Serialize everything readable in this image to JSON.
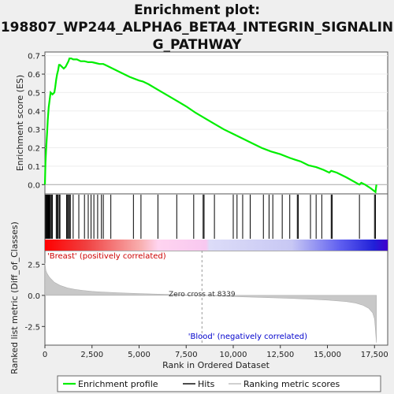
{
  "title_line1": "Enrichment plot:",
  "title_line2": "198807_WP244_ALPHA6_BETA4_INTEGRIN_SIGNALIN",
  "title_line3": "G_PATHWAY",
  "chart_data": {
    "type": "line",
    "n_genes": 17600,
    "es_axis": {
      "label": "Enrichment score (ES)",
      "ylim": [
        -0.05,
        0.72
      ],
      "ticks": [
        0.0,
        0.1,
        0.2,
        0.3,
        0.4,
        0.5,
        0.6,
        0.7
      ],
      "tick_labels": [
        "0.0",
        "0.1",
        "0.2",
        "0.3",
        "0.4",
        "0.5",
        "0.6",
        "0.7"
      ]
    },
    "metric_axis": {
      "label": "Ranked list metric (Diff_of_Classes)",
      "ylim": [
        -4.0,
        3.6
      ],
      "ticks": [
        2.5,
        0.0,
        -2.5
      ],
      "tick_labels": [
        "2.5",
        "0.0",
        "-2.5"
      ]
    },
    "x_axis": {
      "label": "Rank in Ordered Dataset",
      "xlim": [
        0,
        18200
      ],
      "ticks": [
        0,
        2500,
        5000,
        7500,
        10000,
        12500,
        15000,
        17500
      ],
      "tick_labels": [
        "0",
        "2,500",
        "5,000",
        "7,500",
        "10,000",
        "12,500",
        "15,000",
        "17,500"
      ]
    },
    "series": [
      {
        "name": "Enrichment profile",
        "color": "#00ee00",
        "x": [
          0,
          30,
          60,
          90,
          120,
          150,
          200,
          250,
          300,
          400,
          500,
          550,
          600,
          650,
          700,
          750,
          800,
          900,
          1000,
          1100,
          1200,
          1250,
          1300,
          1400,
          1500,
          1700,
          1900,
          2100,
          2300,
          2500,
          2700,
          2900,
          3100,
          3300,
          3500,
          4000,
          4500,
          5000,
          5200,
          5500,
          6000,
          6500,
          7000,
          7500,
          8000,
          8500,
          9000,
          9500,
          10000,
          10500,
          11000,
          11500,
          12000,
          12500,
          13000,
          13300,
          13600,
          14000,
          14400,
          14800,
          15100,
          15200,
          15500,
          16000,
          16700,
          16800,
          17000,
          17300,
          17550,
          17600
        ],
        "y": [
          0.0,
          0.12,
          0.18,
          0.24,
          0.29,
          0.35,
          0.42,
          0.46,
          0.5,
          0.49,
          0.5,
          0.53,
          0.57,
          0.6,
          0.62,
          0.65,
          0.65,
          0.64,
          0.63,
          0.64,
          0.66,
          0.67,
          0.685,
          0.685,
          0.68,
          0.68,
          0.67,
          0.67,
          0.665,
          0.665,
          0.66,
          0.655,
          0.655,
          0.645,
          0.635,
          0.61,
          0.585,
          0.565,
          0.56,
          0.545,
          0.515,
          0.485,
          0.455,
          0.425,
          0.39,
          0.36,
          0.33,
          0.3,
          0.275,
          0.25,
          0.225,
          0.2,
          0.18,
          0.165,
          0.145,
          0.135,
          0.125,
          0.105,
          0.095,
          0.08,
          0.065,
          0.075,
          0.065,
          0.04,
          0.0,
          0.01,
          0.0,
          -0.02,
          -0.04,
          0.0
        ]
      }
    ],
    "hits_legend": "Hits",
    "metric_legend": "Ranking metric scores",
    "hits": [
      40,
      80,
      110,
      140,
      170,
      200,
      230,
      260,
      300,
      350,
      400,
      600,
      650,
      700,
      760,
      800,
      1150,
      1200,
      1250,
      1300,
      1350,
      1500,
      1800,
      2100,
      2300,
      2450,
      2600,
      2800,
      3000,
      3100,
      3500,
      4700,
      5100,
      6000,
      7000,
      7900,
      8400,
      8450,
      9000,
      10000,
      10200,
      10500,
      10900,
      11600,
      11900,
      12100,
      12600,
      13000,
      13400,
      13450,
      14100,
      14400,
      14700,
      15200,
      15250,
      16700,
      17500,
      17550
    ],
    "metric": {
      "x": [
        0,
        50,
        100,
        200,
        300,
        500,
        800,
        1200,
        1600,
        2000,
        2500,
        3000,
        4000,
        5000,
        6000,
        7000,
        8000,
        8339,
        9000,
        10000,
        11000,
        12000,
        13000,
        14000,
        15000,
        16000,
        16500,
        16900,
        17200,
        17400,
        17500,
        17550,
        17600
      ],
      "y": [
        2.6,
        2.0,
        1.8,
        1.55,
        1.35,
        1.05,
        0.8,
        0.6,
        0.48,
        0.4,
        0.32,
        0.27,
        0.2,
        0.14,
        0.1,
        0.06,
        0.02,
        0.0,
        -0.04,
        -0.09,
        -0.14,
        -0.19,
        -0.24,
        -0.3,
        -0.38,
        -0.5,
        -0.62,
        -0.8,
        -1.05,
        -1.4,
        -1.9,
        -2.8,
        -3.8
      ]
    },
    "zero_cross": 8339,
    "zero_cross_label": "Zero cross at 8339",
    "pos_label": "'Breast' (positively correlated)",
    "neg_label": "'Blood' (negatively correlated)",
    "pos_label_color": "#cc0000",
    "neg_label_color": "#0000cc",
    "legend": [
      "Enrichment profile",
      "Hits",
      "Ranking metric scores"
    ]
  }
}
